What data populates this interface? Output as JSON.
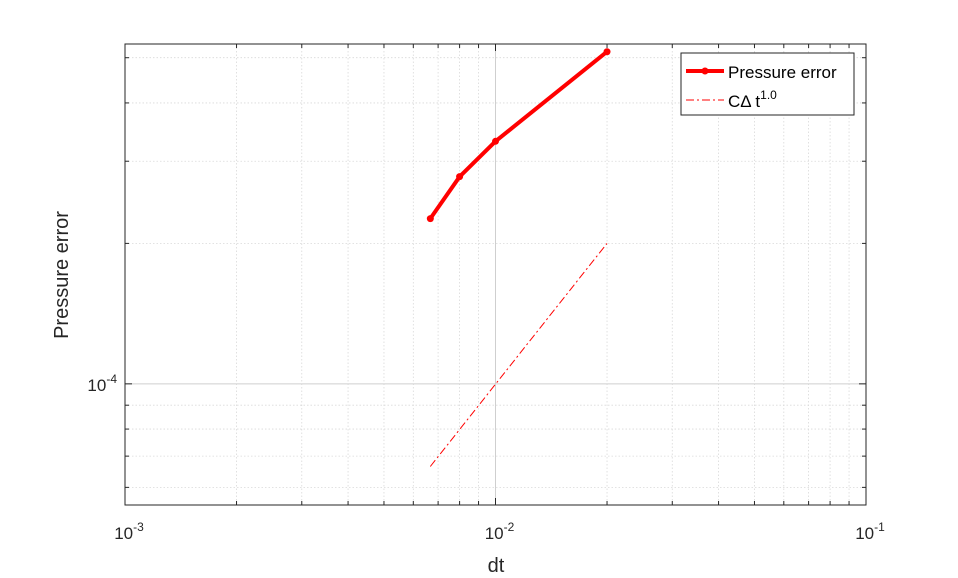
{
  "chart_data": {
    "type": "line",
    "title": "",
    "xlabel": "dt",
    "ylabel": "Pressure error",
    "xscale": "log",
    "yscale": "log",
    "xlim": [
      0.001,
      0.1
    ],
    "ylim": [
      5.5e-05,
      0.000535
    ],
    "x_ticks": [
      {
        "base": "10",
        "exp": "-3",
        "value": 0.001
      },
      {
        "base": "10",
        "exp": "-2",
        "value": 0.01
      },
      {
        "base": "10",
        "exp": "-1",
        "value": 0.1
      }
    ],
    "y_ticks": [
      {
        "base": "10",
        "exp": "-4",
        "value": 0.0001
      }
    ],
    "grid": true,
    "minor_grid": true,
    "legend_position": "top-right",
    "series": [
      {
        "name": "Pressure error",
        "color": "#ff0000",
        "style": "solid-markers",
        "x": [
          0.00667,
          0.008,
          0.01,
          0.02
        ],
        "y": [
          0.000226,
          0.000278,
          0.000331,
          0.000515
        ]
      },
      {
        "name_base": "CΔ t",
        "name_exp": "1.0",
        "color": "#ff0000",
        "style": "dash-dot",
        "x": [
          0.00667,
          0.02
        ],
        "y": [
          6.65e-05,
          0.0002
        ]
      }
    ]
  }
}
